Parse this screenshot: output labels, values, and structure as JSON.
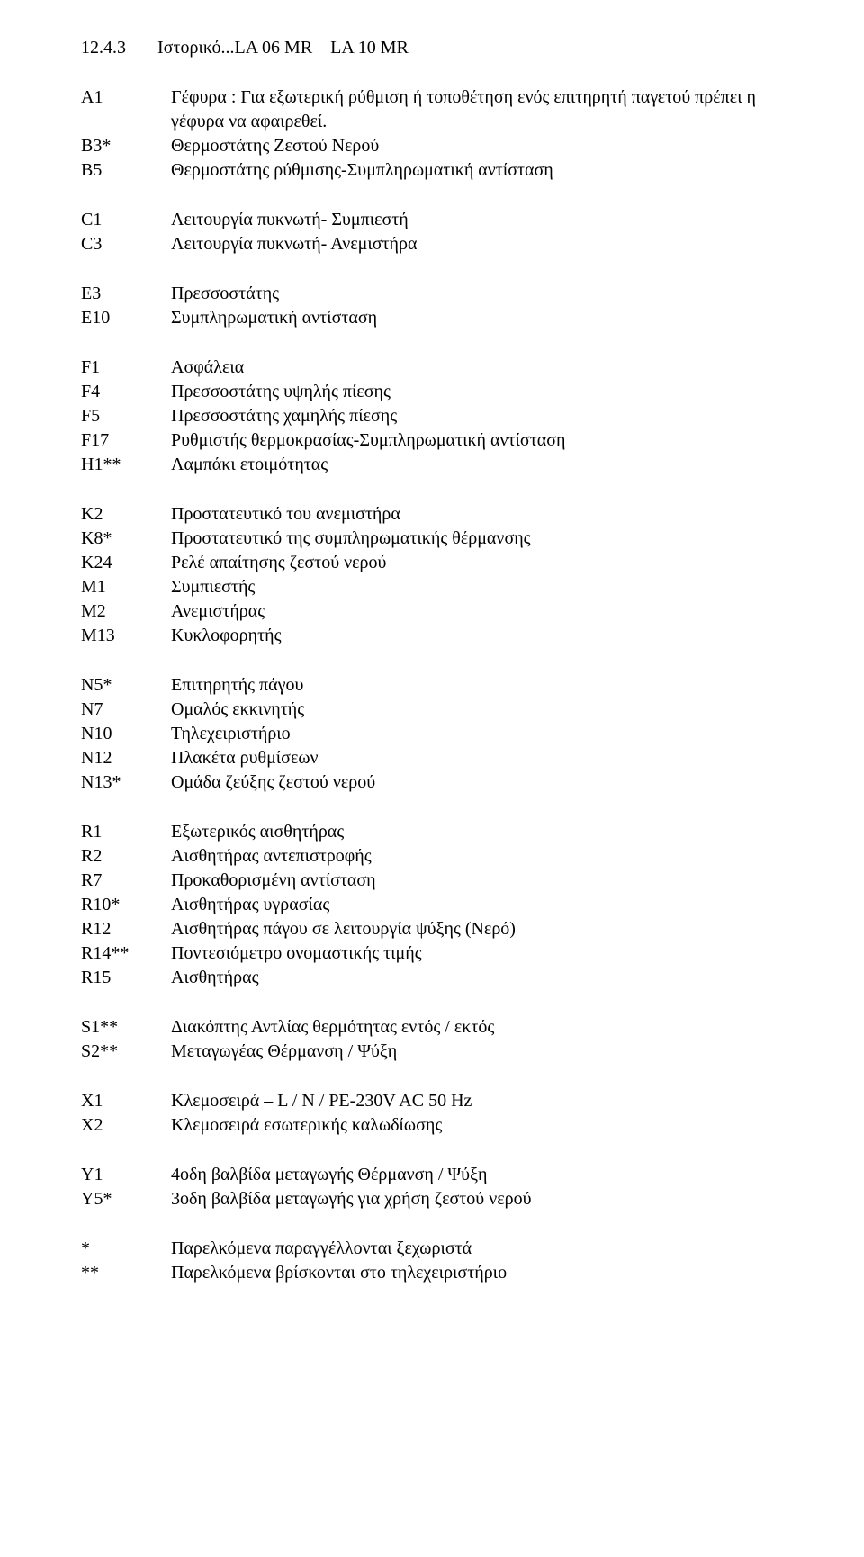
{
  "heading": {
    "number": "12.4.3",
    "title": "Ιστορικό...LA 06 MR – LA 10 MR"
  },
  "groups": [
    {
      "rows": [
        {
          "code": "A1",
          "desc": "Γέφυρα : Για εξωτερική ρύθμιση ή τοποθέτηση ενός επιτηρητή παγετού πρέπει η γέφυρα να αφαιρεθεί."
        },
        {
          "code": "B3*",
          "desc": "Θερμοστάτης Ζεστού Νερού"
        },
        {
          "code": "B5",
          "desc": "Θερμοστάτης ρύθμισης-Συμπληρωματική αντίσταση"
        }
      ]
    },
    {
      "rows": [
        {
          "code": "C1",
          "desc": "Λειτουργία πυκνωτή- Συμπιεστή"
        },
        {
          "code": "C3",
          "desc": "Λειτουργία πυκνωτή- Ανεμιστήρα"
        }
      ]
    },
    {
      "rows": [
        {
          "code": "E3",
          "desc": "Πρεσσοστάτης"
        },
        {
          "code": "E10",
          "desc": "Συμπληρωματική αντίσταση"
        }
      ]
    },
    {
      "rows": [
        {
          "code": "F1",
          "desc": "Ασφάλεια"
        },
        {
          "code": "F4",
          "desc": "Πρεσσοστάτης υψηλής πίεσης"
        },
        {
          "code": "F5",
          "desc": "Πρεσσοστάτης χαμηλής πίεσης"
        },
        {
          "code": "F17",
          "desc": "Ρυθμιστής θερμοκρασίας-Συμπληρωματική αντίσταση"
        },
        {
          "code": "H1**",
          "desc": "Λαμπάκι ετοιμότητας"
        }
      ]
    },
    {
      "rows": [
        {
          "code": "K2",
          "desc": "Προστατευτικό του ανεμιστήρα"
        },
        {
          "code": "K8*",
          "desc": "Προστατευτικό της συμπληρωματικής θέρμανσης"
        },
        {
          "code": "K24",
          "desc": "Ρελέ απαίτησης ζεστού νερού"
        },
        {
          "code": "M1",
          "desc": "Συμπιεστής"
        },
        {
          "code": "M2",
          "desc": "Ανεμιστήρας"
        },
        {
          "code": "M13",
          "desc": "Κυκλοφορητής"
        }
      ]
    },
    {
      "rows": [
        {
          "code": "N5*",
          "desc": "Επιτηρητής πάγου"
        },
        {
          "code": "N7",
          "desc": "Ομαλός εκκινητής"
        },
        {
          "code": "N10",
          "desc": "Τηλεχειριστήριο"
        },
        {
          "code": "N12",
          "desc": "Πλακέτα ρυθμίσεων"
        },
        {
          "code": "N13*",
          "desc": "Ομάδα ζεύξης ζεστού νερού"
        }
      ]
    },
    {
      "rows": [
        {
          "code": "R1",
          "desc": "Εξωτερικός αισθητήρας"
        },
        {
          "code": "R2",
          "desc": "Αισθητήρας αντεπιστροφής"
        },
        {
          "code": "R7",
          "desc": "Προκαθορισμένη αντίσταση"
        },
        {
          "code": "R10*",
          "desc": "Αισθητήρας υγρασίας"
        },
        {
          "code": "R12",
          "desc": "Αισθητήρας πάγου σε λειτουργία ψύξης (Νερό)"
        },
        {
          "code": "R14**",
          "desc": "Ποντεσιόμετρο ονομαστικής τιμής"
        },
        {
          "code": "R15",
          "desc": "Αισθητήρας"
        }
      ]
    },
    {
      "rows": [
        {
          "code": "S1**",
          "desc": "Διακόπτης Αντλίας θερμότητας εντός / εκτός"
        },
        {
          "code": "S2**",
          "desc": "Μεταγωγέας Θέρμανση / Ψύξη"
        }
      ]
    },
    {
      "rows": [
        {
          "code": "X1",
          "desc": "Κλεμοσειρά – L / N / PE-230V AC 50 Hz"
        },
        {
          "code": "X2",
          "desc": "Κλεμοσειρά εσωτερικής καλωδίωσης"
        }
      ]
    },
    {
      "rows": [
        {
          "code": "Y1",
          "desc": "4οδη βαλβίδα μεταγωγής Θέρμανση / Ψύξη"
        },
        {
          "code": "Y5*",
          "desc": "3οδη βαλβίδα μεταγωγής για χρήση ζεστού νερού"
        }
      ]
    },
    {
      "rows": [
        {
          "code": "*",
          "desc": "Παρελκόμενα παραγγέλλονται ξεχωριστά"
        },
        {
          "code": "**",
          "desc": "Παρελκόμενα βρίσκονται στο τηλεχειριστήριο"
        }
      ]
    }
  ]
}
